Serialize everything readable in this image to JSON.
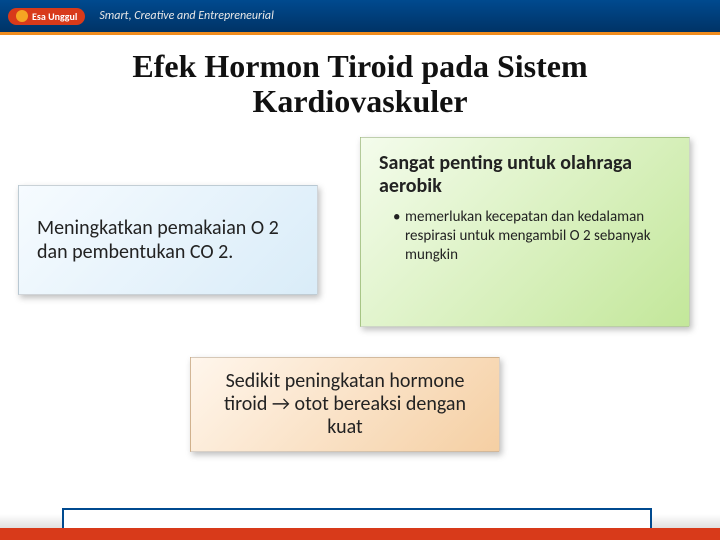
{
  "header": {
    "logo_text": "Esa Unggul",
    "tagline": "Smart, Creative and Entrepreneurial"
  },
  "title": "Efek Hormon Tiroid pada Sistem Kardiovaskuler",
  "box_left": {
    "text": "Meningkatkan pemakaian O 2 dan pembentukan CO 2."
  },
  "box_right": {
    "heading": "Sangat penting untuk olahraga aerobik",
    "bullet": "memerlukan kecepatan dan kedalaman respirasi untuk mengambil O 2 sebanyak mungkin"
  },
  "box_bottom": {
    "text": "Sedikit peningkatan hormone tiroid → otot bereaksi dengan kuat"
  }
}
